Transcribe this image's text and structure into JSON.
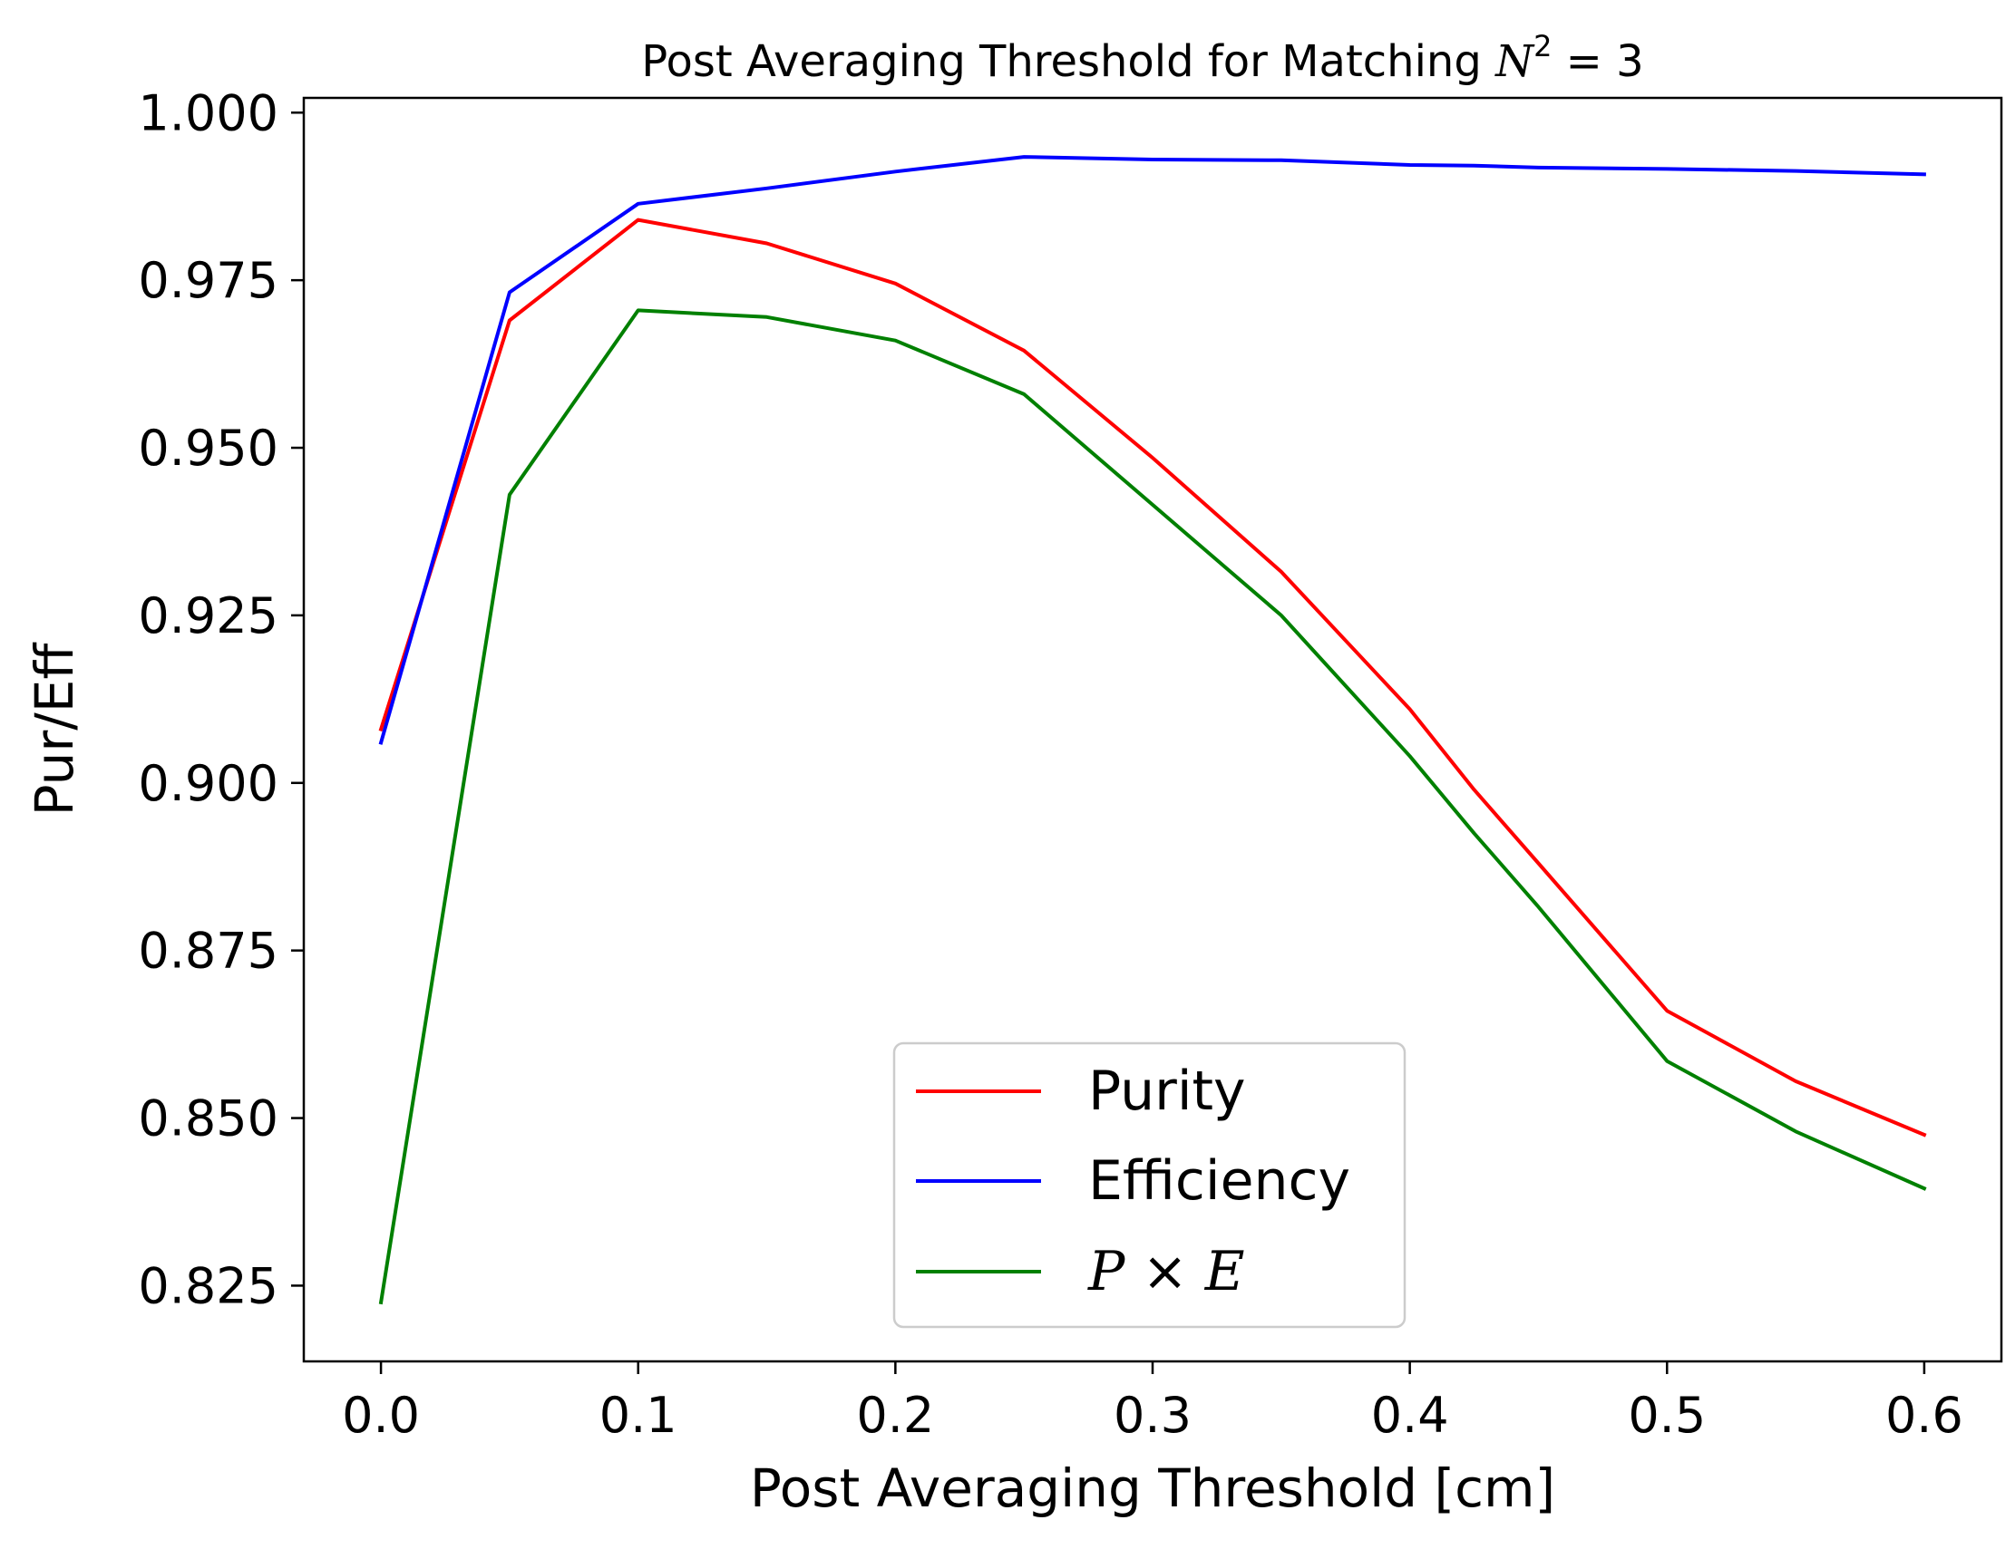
{
  "chart_data": {
    "type": "line",
    "title": {
      "prefix": "Post Averaging Threshold for Matching ",
      "math_base": "N",
      "math_sup": "2",
      "math_rest": " = 3"
    },
    "xlabel": "Post Averaging Threshold [cm]",
    "ylabel": "Pur/Eff",
    "xlim": [
      -0.03,
      0.63
    ],
    "ylim": [
      0.8137,
      1.0022
    ],
    "x_ticks": [
      0.0,
      0.1,
      0.2,
      0.3,
      0.4,
      0.5,
      0.6
    ],
    "x_tick_labels": [
      "0.0",
      "0.1",
      "0.2",
      "0.3",
      "0.4",
      "0.5",
      "0.6"
    ],
    "y_ticks": [
      0.825,
      0.85,
      0.875,
      0.9,
      0.925,
      0.95,
      0.975,
      1.0
    ],
    "y_tick_labels": [
      "0.825",
      "0.850",
      "0.875",
      "0.900",
      "0.925",
      "0.950",
      "0.975",
      "1.000"
    ],
    "grid": false,
    "legend_position": "lower-center",
    "series": [
      {
        "name": "Purity",
        "color": "#ff0000",
        "x": [
          0.0,
          0.05,
          0.1,
          0.15,
          0.2,
          0.25,
          0.3,
          0.35,
          0.4,
          0.425,
          0.45,
          0.5,
          0.55,
          0.6
        ],
        "y": [
          0.908,
          0.969,
          0.984,
          0.9805,
          0.9745,
          0.9645,
          0.9485,
          0.9315,
          0.911,
          0.899,
          0.888,
          0.866,
          0.8555,
          0.8475
        ]
      },
      {
        "name": "Efficiency",
        "color": "#0000ff",
        "x": [
          0.0,
          0.05,
          0.1,
          0.15,
          0.2,
          0.25,
          0.3,
          0.35,
          0.4,
          0.425,
          0.45,
          0.5,
          0.55,
          0.6
        ],
        "y": [
          0.906,
          0.9732,
          0.9864,
          0.9887,
          0.9912,
          0.9934,
          0.993,
          0.9929,
          0.9922,
          0.9921,
          0.9918,
          0.9916,
          0.9913,
          0.9908
        ]
      },
      {
        "name_math": [
          "P",
          " × ",
          "E"
        ],
        "color": "#008000",
        "x": [
          0.0,
          0.05,
          0.1,
          0.15,
          0.2,
          0.25,
          0.3,
          0.35,
          0.4,
          0.425,
          0.45,
          0.5,
          0.55,
          0.6
        ],
        "y": [
          0.8225,
          0.943,
          0.9705,
          0.9695,
          0.966,
          0.958,
          0.9415,
          0.925,
          0.904,
          0.8925,
          0.8815,
          0.8585,
          0.848,
          0.8395
        ]
      }
    ]
  }
}
